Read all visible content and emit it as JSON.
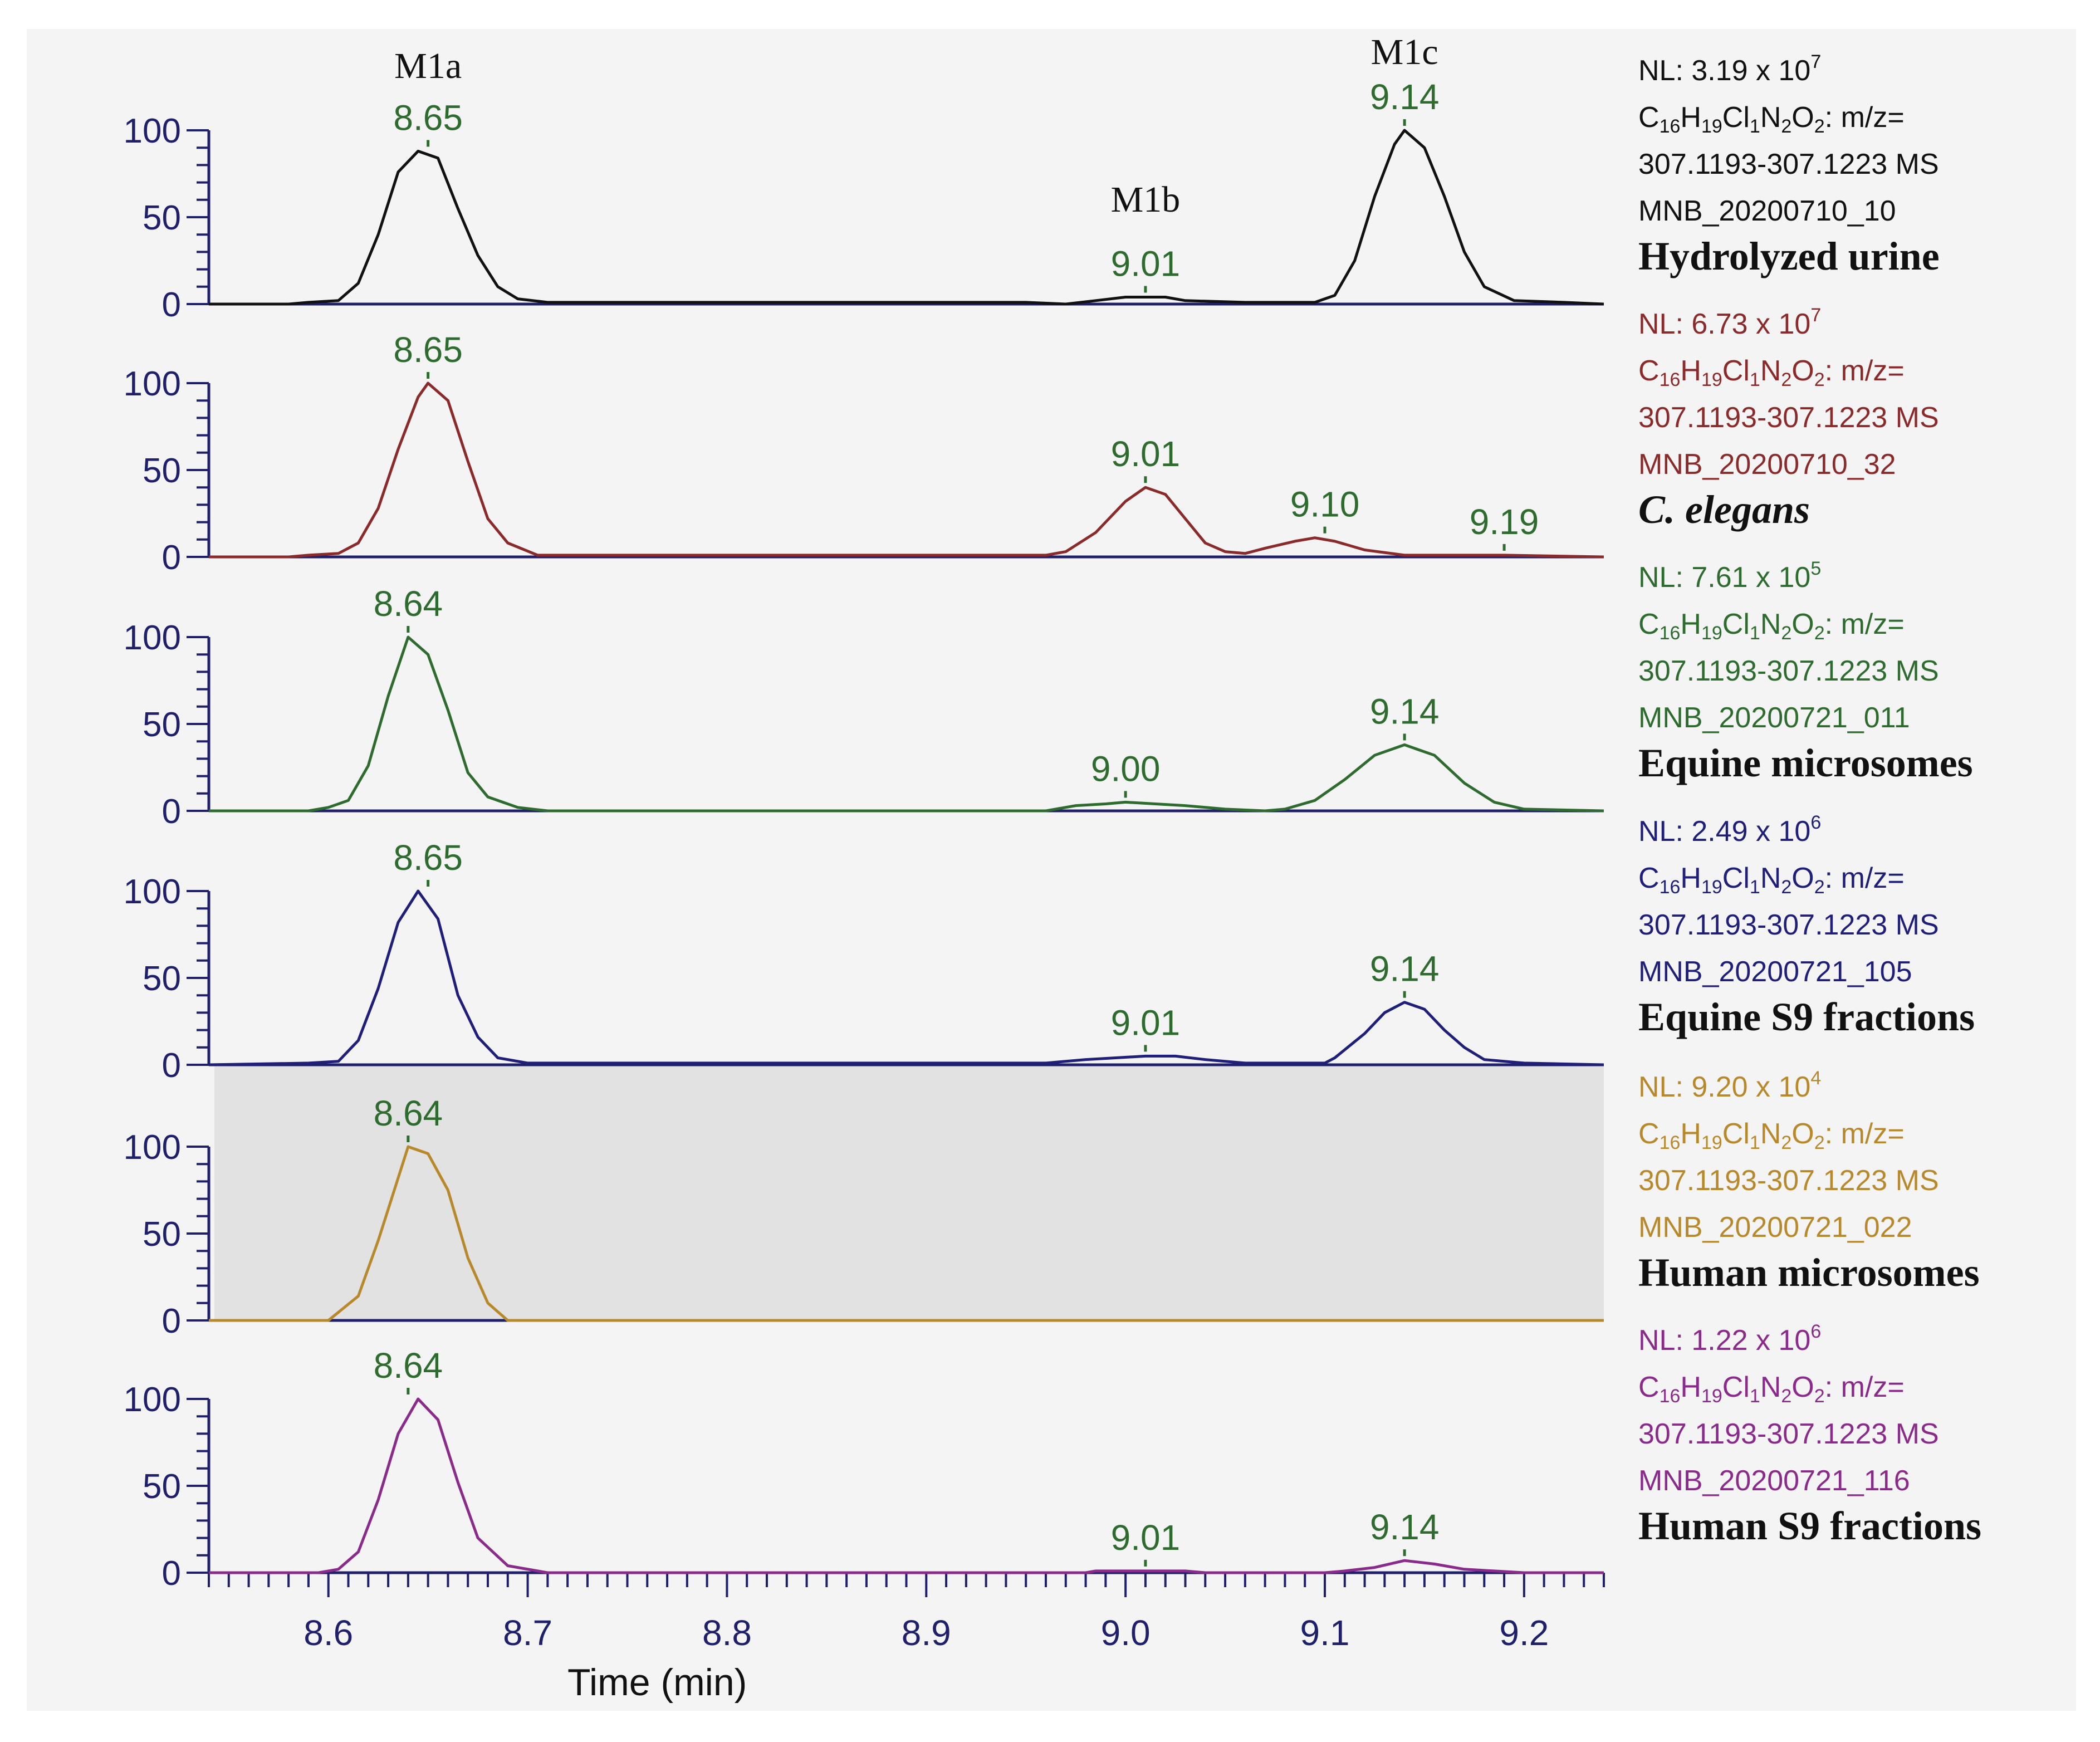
{
  "chart_data": {
    "type": "line",
    "title": "",
    "xlabel": "Time (min)",
    "ylabel": "",
    "xlim": [
      8.54,
      9.24
    ],
    "ylim": [
      0,
      100
    ],
    "x_ticks": [
      "8.6",
      "8.7",
      "8.8",
      "8.9",
      "9.0",
      "9.1",
      "9.2"
    ],
    "y_ticks": [
      "0",
      "50",
      "100"
    ],
    "metabolite_labels": [
      {
        "text": "M1a",
        "x": 8.65
      },
      {
        "text": "M1b",
        "x": 9.01
      },
      {
        "text": "M1c",
        "x": 9.14
      }
    ],
    "series": [
      {
        "name": "Hydrolyzed urine",
        "color": "#111111",
        "shaded": false,
        "nl_label": "NL:",
        "nl_mantissa": "3.19 x 10",
        "nl_exp": "7",
        "formula": [
          "C",
          "16",
          "H",
          "19",
          "Cl",
          "1",
          "N",
          "2",
          "O",
          "2",
          ": m/z="
        ],
        "mz_range": "307.1193-307.1223 MS",
        "file": "MNB_20200710_10",
        "points": [
          [
            8.54,
            0
          ],
          [
            8.58,
            0
          ],
          [
            8.59,
            1
          ],
          [
            8.605,
            2
          ],
          [
            8.615,
            12
          ],
          [
            8.625,
            40
          ],
          [
            8.635,
            76
          ],
          [
            8.645,
            88
          ],
          [
            8.655,
            84
          ],
          [
            8.665,
            55
          ],
          [
            8.675,
            28
          ],
          [
            8.685,
            10
          ],
          [
            8.695,
            3
          ],
          [
            8.71,
            1
          ],
          [
            8.8,
            1
          ],
          [
            8.95,
            1
          ],
          [
            8.97,
            0
          ],
          [
            8.985,
            2
          ],
          [
            9.0,
            4
          ],
          [
            9.01,
            4
          ],
          [
            9.02,
            4
          ],
          [
            9.03,
            2
          ],
          [
            9.06,
            1
          ],
          [
            9.095,
            1
          ],
          [
            9.105,
            5
          ],
          [
            9.115,
            25
          ],
          [
            9.125,
            62
          ],
          [
            9.135,
            92
          ],
          [
            9.14,
            100
          ],
          [
            9.15,
            90
          ],
          [
            9.16,
            62
          ],
          [
            9.17,
            30
          ],
          [
            9.18,
            10
          ],
          [
            9.195,
            2
          ],
          [
            9.22,
            1
          ],
          [
            9.24,
            0
          ]
        ],
        "peaks": [
          {
            "x": 8.65,
            "y": 88,
            "label": "8.65"
          },
          {
            "x": 9.01,
            "y": 4,
            "label": "9.01"
          },
          {
            "x": 9.14,
            "y": 100,
            "label": "9.14"
          }
        ]
      },
      {
        "name": "C. elegans",
        "color": "#8b2a2a",
        "shaded": false,
        "nl_label": "NL:",
        "nl_mantissa": "6.73 x 10",
        "nl_exp": "7",
        "formula": [
          "C",
          "16",
          "H",
          "19",
          "Cl",
          "1",
          "N",
          "2",
          "O",
          "2",
          ": m/z="
        ],
        "mz_range": "307.1193-307.1223 MS",
        "file": "MNB_20200710_32",
        "points": [
          [
            8.54,
            0
          ],
          [
            8.58,
            0
          ],
          [
            8.59,
            1
          ],
          [
            8.605,
            2
          ],
          [
            8.615,
            8
          ],
          [
            8.625,
            28
          ],
          [
            8.635,
            62
          ],
          [
            8.645,
            92
          ],
          [
            8.65,
            100
          ],
          [
            8.66,
            90
          ],
          [
            8.67,
            55
          ],
          [
            8.68,
            22
          ],
          [
            8.69,
            8
          ],
          [
            8.705,
            1
          ],
          [
            8.8,
            1
          ],
          [
            8.96,
            1
          ],
          [
            8.97,
            3
          ],
          [
            8.985,
            14
          ],
          [
            9.0,
            32
          ],
          [
            9.01,
            40
          ],
          [
            9.02,
            36
          ],
          [
            9.03,
            22
          ],
          [
            9.04,
            8
          ],
          [
            9.05,
            3
          ],
          [
            9.06,
            2
          ],
          [
            9.07,
            5
          ],
          [
            9.085,
            9
          ],
          [
            9.095,
            11
          ],
          [
            9.105,
            9
          ],
          [
            9.12,
            4
          ],
          [
            9.14,
            1
          ],
          [
            9.19,
            1
          ],
          [
            9.24,
            0
          ]
        ],
        "peaks": [
          {
            "x": 8.65,
            "y": 100,
            "label": "8.65"
          },
          {
            "x": 9.01,
            "y": 40,
            "label": "9.01"
          },
          {
            "x": 9.1,
            "y": 11,
            "label": "9.10"
          },
          {
            "x": 9.19,
            "y": 1,
            "label": "9.19"
          }
        ]
      },
      {
        "name": "Equine microsomes",
        "color": "#2e6b2e",
        "shaded": false,
        "nl_label": "NL:",
        "nl_mantissa": "7.61 x 10",
        "nl_exp": "5",
        "formula": [
          "C",
          "16",
          "H",
          "19",
          "Cl",
          "1",
          "N",
          "2",
          "O",
          "2",
          ": m/z="
        ],
        "mz_range": "307.1193-307.1223 MS",
        "file": "MNB_20200721_011",
        "points": [
          [
            8.54,
            0
          ],
          [
            8.59,
            0
          ],
          [
            8.6,
            2
          ],
          [
            8.61,
            6
          ],
          [
            8.62,
            26
          ],
          [
            8.63,
            66
          ],
          [
            8.64,
            100
          ],
          [
            8.65,
            90
          ],
          [
            8.66,
            58
          ],
          [
            8.67,
            22
          ],
          [
            8.68,
            8
          ],
          [
            8.695,
            2
          ],
          [
            8.71,
            0
          ],
          [
            8.96,
            0
          ],
          [
            8.975,
            3
          ],
          [
            8.99,
            4
          ],
          [
            9.0,
            5
          ],
          [
            9.015,
            4
          ],
          [
            9.03,
            3
          ],
          [
            9.05,
            1
          ],
          [
            9.07,
            0
          ],
          [
            9.08,
            1
          ],
          [
            9.095,
            6
          ],
          [
            9.11,
            18
          ],
          [
            9.125,
            32
          ],
          [
            9.14,
            38
          ],
          [
            9.155,
            32
          ],
          [
            9.17,
            16
          ],
          [
            9.185,
            5
          ],
          [
            9.2,
            1
          ],
          [
            9.24,
            0
          ]
        ],
        "peaks": [
          {
            "x": 8.64,
            "y": 100,
            "label": "8.64"
          },
          {
            "x": 9.0,
            "y": 5,
            "label": "9.00"
          },
          {
            "x": 9.14,
            "y": 38,
            "label": "9.14"
          }
        ]
      },
      {
        "name": "Equine S9 fractions",
        "color": "#1f1f7a",
        "shaded": false,
        "nl_label": "NL:",
        "nl_mantissa": "2.49 x 10",
        "nl_exp": "6",
        "formula": [
          "C",
          "16",
          "H",
          "19",
          "Cl",
          "1",
          "N",
          "2",
          "O",
          "2",
          ": m/z="
        ],
        "mz_range": "307.1193-307.1223 MS",
        "file": "MNB_20200721_105",
        "points": [
          [
            8.54,
            0
          ],
          [
            8.59,
            1
          ],
          [
            8.605,
            2
          ],
          [
            8.615,
            14
          ],
          [
            8.625,
            44
          ],
          [
            8.635,
            82
          ],
          [
            8.645,
            100
          ],
          [
            8.655,
            84
          ],
          [
            8.665,
            40
          ],
          [
            8.675,
            16
          ],
          [
            8.685,
            4
          ],
          [
            8.7,
            1
          ],
          [
            8.8,
            1
          ],
          [
            8.96,
            1
          ],
          [
            8.98,
            3
          ],
          [
            8.995,
            4
          ],
          [
            9.01,
            5
          ],
          [
            9.025,
            5
          ],
          [
            9.04,
            3
          ],
          [
            9.06,
            1
          ],
          [
            9.1,
            1
          ],
          [
            9.105,
            4
          ],
          [
            9.12,
            18
          ],
          [
            9.13,
            30
          ],
          [
            9.14,
            36
          ],
          [
            9.15,
            32
          ],
          [
            9.16,
            20
          ],
          [
            9.17,
            10
          ],
          [
            9.18,
            3
          ],
          [
            9.2,
            1
          ],
          [
            9.24,
            0
          ]
        ],
        "peaks": [
          {
            "x": 8.65,
            "y": 100,
            "label": "8.65"
          },
          {
            "x": 9.01,
            "y": 5,
            "label": "9.01"
          },
          {
            "x": 9.14,
            "y": 36,
            "label": "9.14"
          }
        ]
      },
      {
        "name": "Human microsomes",
        "color": "#b8892b",
        "shaded": true,
        "nl_label": "NL:",
        "nl_mantissa": "9.20 x 10",
        "nl_exp": "4",
        "formula": [
          "C",
          "16",
          "H",
          "19",
          "Cl",
          "1",
          "N",
          "2",
          "O",
          "2",
          ": m/z="
        ],
        "mz_range": "307.1193-307.1223 MS",
        "file": "MNB_20200721_022",
        "points": [
          [
            8.54,
            0
          ],
          [
            8.6,
            0
          ],
          [
            8.615,
            14
          ],
          [
            8.625,
            46
          ],
          [
            8.64,
            100
          ],
          [
            8.65,
            96
          ],
          [
            8.66,
            75
          ],
          [
            8.67,
            36
          ],
          [
            8.68,
            10
          ],
          [
            8.69,
            0
          ],
          [
            9.24,
            0
          ]
        ],
        "peaks": [
          {
            "x": 8.64,
            "y": 100,
            "label": "8.64"
          }
        ]
      },
      {
        "name": "Human S9 fractions",
        "color": "#8a2a8a",
        "shaded": false,
        "nl_label": "NL:",
        "nl_mantissa": "1.22 x 10",
        "nl_exp": "6",
        "formula": [
          "C",
          "16",
          "H",
          "19",
          "Cl",
          "1",
          "N",
          "2",
          "O",
          "2",
          ": m/z="
        ],
        "mz_range": "307.1193-307.1223 MS",
        "file": "MNB_20200721_116",
        "points": [
          [
            8.54,
            0
          ],
          [
            8.595,
            0
          ],
          [
            8.605,
            2
          ],
          [
            8.615,
            12
          ],
          [
            8.625,
            42
          ],
          [
            8.635,
            80
          ],
          [
            8.645,
            100
          ],
          [
            8.655,
            88
          ],
          [
            8.665,
            52
          ],
          [
            8.675,
            20
          ],
          [
            8.69,
            4
          ],
          [
            8.71,
            0
          ],
          [
            8.98,
            0
          ],
          [
            8.985,
            1
          ],
          [
            9.03,
            1
          ],
          [
            9.04,
            0
          ],
          [
            9.1,
            0
          ],
          [
            9.11,
            1
          ],
          [
            9.125,
            3
          ],
          [
            9.14,
            7
          ],
          [
            9.155,
            5
          ],
          [
            9.17,
            2
          ],
          [
            9.185,
            1
          ],
          [
            9.2,
            0
          ],
          [
            9.24,
            0
          ]
        ],
        "peaks": [
          {
            "x": 8.64,
            "y": 100,
            "label": "8.64"
          },
          {
            "x": 9.01,
            "y": 1,
            "label": "9.01"
          },
          {
            "x": 9.14,
            "y": 7,
            "label": "9.14"
          }
        ]
      }
    ]
  },
  "colors": {
    "background": "#f4f4f4",
    "axis": "#1f1f6b",
    "tick_label": "#1f1f6b",
    "peak_label": "#2e6b2e",
    "shade": "#e2e2e2"
  }
}
